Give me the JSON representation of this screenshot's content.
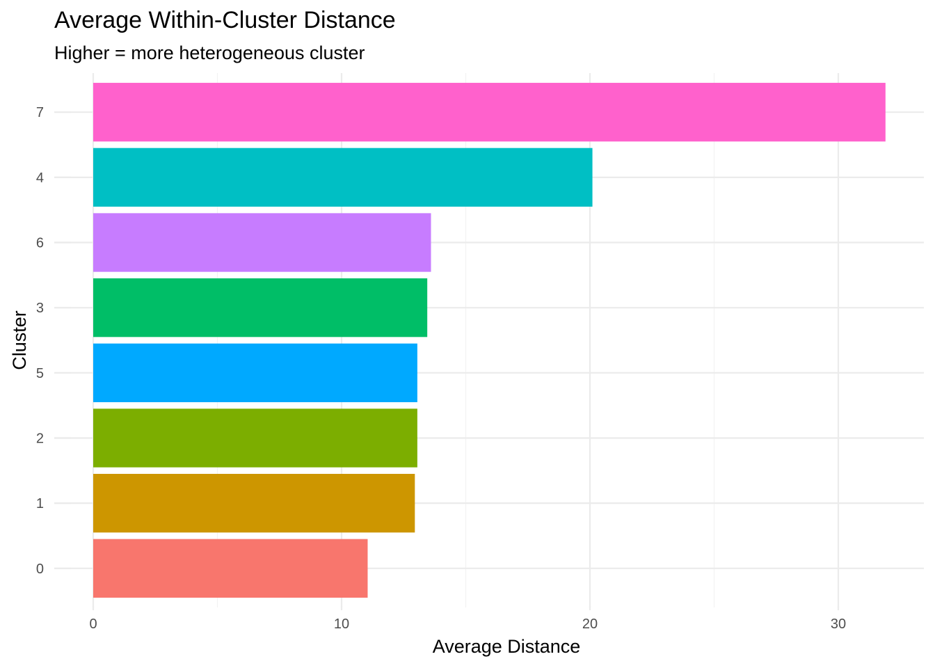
{
  "chart_data": {
    "type": "bar",
    "orientation": "horizontal",
    "title": "Average Within-Cluster Distance",
    "subtitle": "Higher = more heterogeneous cluster",
    "xlabel": "Average Distance",
    "ylabel": "Cluster",
    "xlim": [
      0,
      32
    ],
    "x_ticks": [
      0,
      10,
      20,
      30
    ],
    "x_tick_labels": [
      "0",
      "10",
      "20",
      "30"
    ],
    "grid": true,
    "legend": "none",
    "categories": [
      "7",
      "4",
      "6",
      "3",
      "5",
      "2",
      "1",
      "0"
    ],
    "values": [
      31.9,
      20.1,
      13.6,
      13.45,
      13.05,
      13.05,
      12.95,
      11.05
    ],
    "colors": [
      "#FF61CC",
      "#00BFC4",
      "#C77CFF",
      "#00BE67",
      "#00A9FF",
      "#7CAE00",
      "#CD9600",
      "#F8766D"
    ]
  }
}
